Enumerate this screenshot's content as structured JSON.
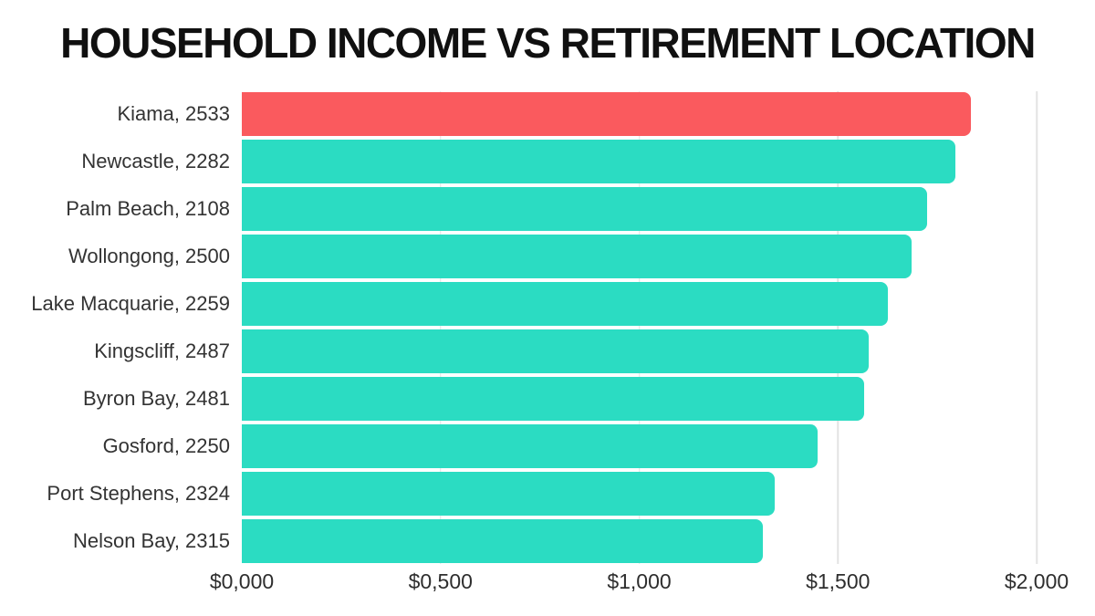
{
  "title": "HOUSEHOLD INCOME VS RETIREMENT LOCATION",
  "colors": {
    "highlight_bar": "#FA5A5E",
    "bar": "#2BDCC2",
    "gridline": "#E3E3E3",
    "title_text": "#101010",
    "label_text": "#333333"
  },
  "chart_data": {
    "type": "bar",
    "orientation": "horizontal",
    "title": "HOUSEHOLD INCOME VS RETIREMENT LOCATION",
    "categories": [
      "Kiama, 2533",
      "Newcastle, 2282",
      "Palm Beach, 2108",
      "Wollongong, 2500",
      "Lake Macquarie, 2259",
      "Kingscliff, 2487",
      "Byron Bay, 2481",
      "Gosford, 2250",
      "Port Stephens, 2324",
      "Nelson Bay, 2315"
    ],
    "values": [
      1835,
      1795,
      1725,
      1685,
      1625,
      1578,
      1565,
      1450,
      1340,
      1310
    ],
    "highlight_index": 0,
    "xlabel": "",
    "ylabel": "",
    "xlim": [
      0,
      2000
    ],
    "x_ticks": [
      {
        "label": "$0,000",
        "value": 0
      },
      {
        "label": "$0,500",
        "value": 500
      },
      {
        "label": "$1,000",
        "value": 1000
      },
      {
        "label": "$1,500",
        "value": 1500
      },
      {
        "label": "$2,000",
        "value": 2000
      }
    ],
    "grid": "vertical-only",
    "legend": "none"
  }
}
